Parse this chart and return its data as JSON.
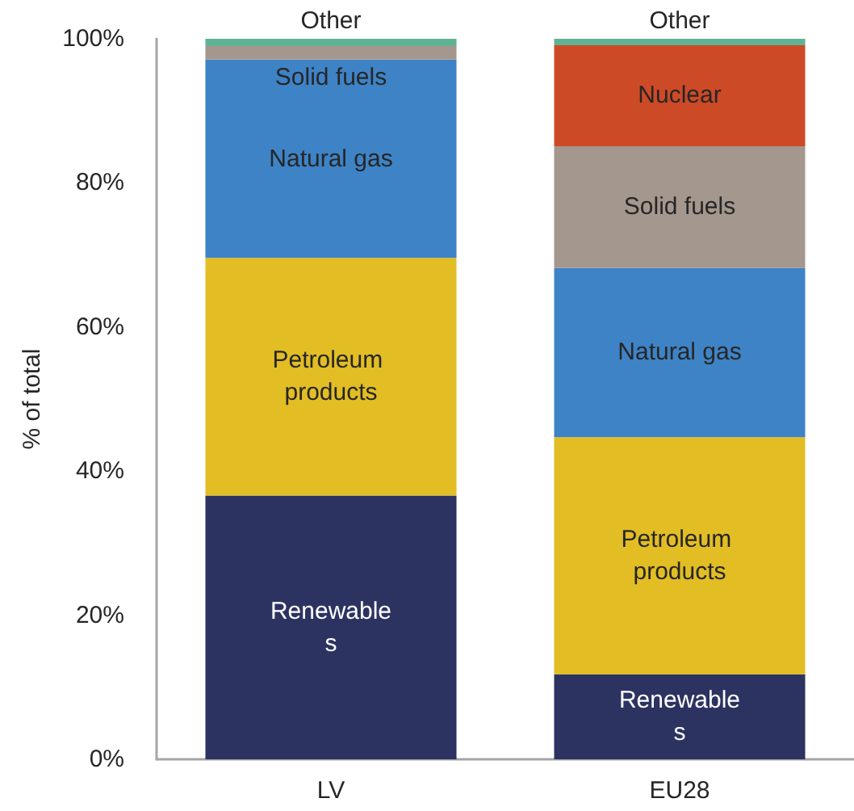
{
  "chart_data": {
    "type": "bar",
    "stacked": true,
    "ylabel": "% of total",
    "categories": [
      "LV",
      "EU28"
    ],
    "series": [
      {
        "name": "Renewables",
        "color": "#2c3361",
        "values": [
          36.6,
          11.8
        ]
      },
      {
        "name": "Petroleum products",
        "color": "#e2bd24",
        "values": [
          33.0,
          32.9
        ]
      },
      {
        "name": "Natural gas",
        "color": "#3e83c6",
        "values": [
          27.5,
          23.5
        ]
      },
      {
        "name": "Solid fuels",
        "color": "#a4978e",
        "values": [
          1.9,
          16.9
        ]
      },
      {
        "name": "Nuclear",
        "color": "#cd4a27",
        "values": [
          0,
          14.0
        ]
      },
      {
        "name": "Other",
        "color": "#5fb394",
        "values": [
          1.0,
          0.9
        ]
      }
    ],
    "ylim": [
      0,
      100
    ],
    "yticks": [
      {
        "value": 0,
        "label": "0%"
      },
      {
        "value": 20,
        "label": "20%"
      },
      {
        "value": 40,
        "label": "40%"
      },
      {
        "value": 60,
        "label": "60%"
      },
      {
        "value": 80,
        "label": "80%"
      },
      {
        "value": 100,
        "label": "100%"
      }
    ],
    "grid": false,
    "legend": false
  }
}
